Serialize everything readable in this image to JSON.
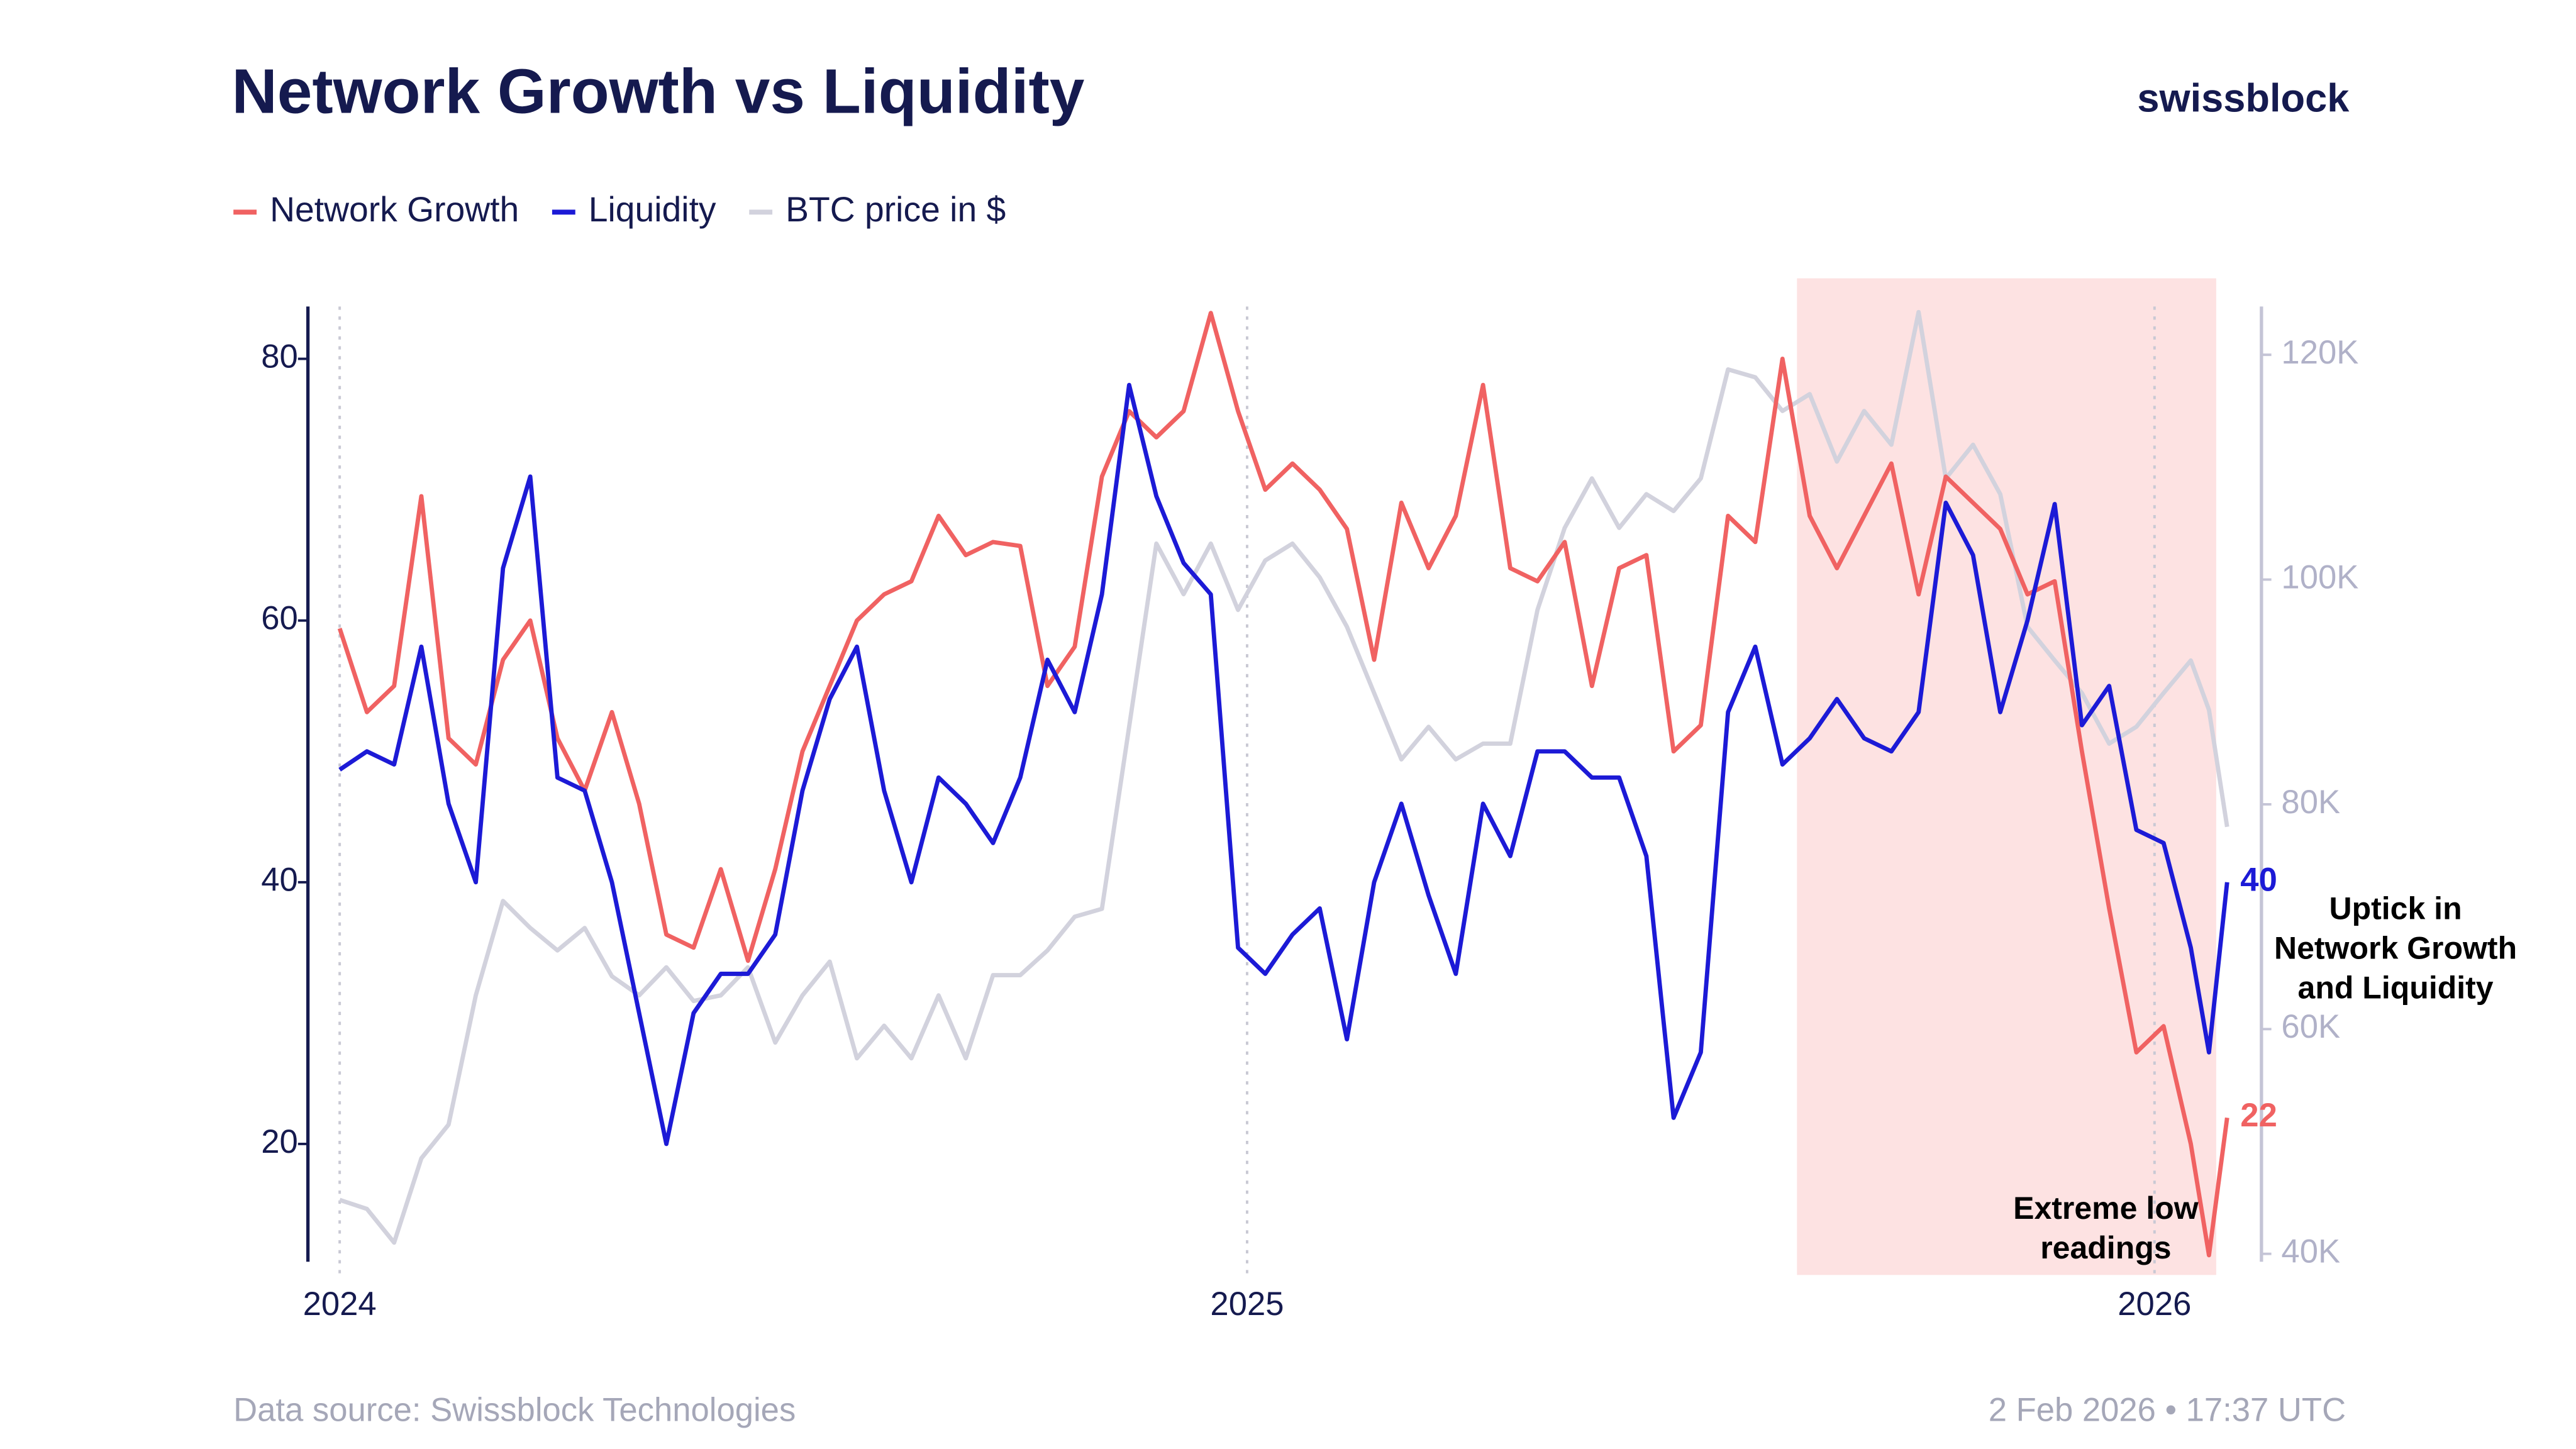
{
  "brand": "swissblock",
  "footer": {
    "source": "Data source: Swissblock Technologies",
    "timestamp": "2 Feb 2026 • 17:37 UTC"
  },
  "chart_data": {
    "type": "line",
    "title": "Network Growth vs Liquidity",
    "x": [
      2024.0,
      2024.03,
      2024.06,
      2024.09,
      2024.12,
      2024.15,
      2024.18,
      2024.21,
      2024.24,
      2024.27,
      2024.3,
      2024.33,
      2024.36,
      2024.39,
      2024.42,
      2024.45,
      2024.48,
      2024.51,
      2024.54,
      2024.57,
      2024.6,
      2024.63,
      2024.66,
      2024.69,
      2024.72,
      2024.75,
      2024.78,
      2024.81,
      2024.84,
      2024.87,
      2024.9,
      2024.93,
      2024.96,
      2024.99,
      2025.02,
      2025.05,
      2025.08,
      2025.11,
      2025.14,
      2025.17,
      2025.2,
      2025.23,
      2025.26,
      2025.29,
      2025.32,
      2025.35,
      2025.38,
      2025.41,
      2025.44,
      2025.47,
      2025.5,
      2025.53,
      2025.56,
      2025.59,
      2025.62,
      2025.65,
      2025.68,
      2025.71,
      2025.74,
      2025.77,
      2025.8,
      2025.83,
      2025.86,
      2025.89,
      2025.92,
      2025.95,
      2025.98,
      2026.01,
      2026.04,
      2026.06,
      2026.08
    ],
    "xlim": [
      2023.965,
      2026.085
    ],
    "xticks": [
      2024,
      2025,
      2026
    ],
    "xgrid": true,
    "ylim": [
      11,
      84
    ],
    "yticks": [
      20,
      40,
      60,
      80
    ],
    "y2lim": [
      39300,
      124300
    ],
    "y2ticks": [
      {
        "value": 40000,
        "label": "40K"
      },
      {
        "value": 60000,
        "label": "60K"
      },
      {
        "value": 80000,
        "label": "80K"
      },
      {
        "value": 100000,
        "label": "100K"
      },
      {
        "value": 120000,
        "label": "120K"
      }
    ],
    "shaded_region": {
      "x": [
        2025.606,
        2026.068
      ],
      "color": "#fde2e2"
    },
    "series": [
      {
        "name": "Network Growth",
        "color": "#f06262",
        "end_label": "22",
        "values": [
          59.4,
          53,
          55,
          69.5,
          51,
          49,
          57,
          60,
          51,
          47,
          53,
          46,
          36,
          35,
          41,
          34,
          41,
          50,
          55,
          60,
          62,
          63,
          68,
          65,
          66,
          65.7,
          55,
          58,
          71,
          76,
          74,
          76,
          83.5,
          76,
          70,
          72,
          70,
          67,
          57,
          69,
          64,
          68,
          78,
          64,
          63,
          66,
          55,
          64,
          65,
          50,
          52,
          68,
          66,
          80,
          68,
          64,
          68,
          72,
          62,
          71,
          69,
          67,
          62,
          63,
          50,
          38,
          27,
          29,
          20,
          11.5,
          22
        ]
      },
      {
        "name": "Liquidity",
        "color": "#1c1ad6",
        "end_label": "40",
        "values": [
          48.6,
          50,
          49,
          58,
          46,
          40,
          64,
          71,
          48,
          47,
          40,
          30,
          20,
          30,
          33,
          33,
          36,
          47,
          54,
          58,
          47,
          40,
          48,
          46,
          43,
          48,
          57,
          53,
          62,
          78,
          69.5,
          64.4,
          62,
          35,
          33,
          36,
          38,
          28,
          40,
          46,
          39,
          33,
          46,
          42,
          50,
          50,
          48,
          48,
          42,
          22,
          27,
          53,
          58,
          49,
          51,
          54,
          51,
          50,
          53,
          69,
          65,
          53,
          60,
          68.9,
          52,
          55,
          44,
          43,
          35,
          27,
          40
        ]
      },
      {
        "name": "BTC price in $",
        "color": "#d2d2dd",
        "axis": "y2",
        "values": [
          44800,
          44000,
          41000,
          48500,
          51500,
          63000,
          71400,
          69000,
          67000,
          69000,
          64700,
          63000,
          65500,
          62500,
          63000,
          65500,
          58800,
          63000,
          66000,
          57400,
          60300,
          57400,
          63000,
          57400,
          64800,
          64800,
          67000,
          70000,
          70700,
          86900,
          103200,
          98700,
          103200,
          97300,
          101700,
          103200,
          100200,
          95800,
          89900,
          84000,
          86900,
          84000,
          85400,
          85400,
          97300,
          104600,
          109000,
          104600,
          107600,
          106100,
          109000,
          118700,
          118000,
          115000,
          116500,
          110500,
          115000,
          112000,
          123800,
          109000,
          112000,
          107600,
          95800,
          92800,
          89900,
          85400,
          86900,
          89900,
          92800,
          88400,
          78000
        ]
      }
    ],
    "annotations": [
      {
        "lines": [
          "Uptick in",
          "Network Growth",
          "and Liquidity"
        ]
      },
      {
        "lines": [
          "Extreme low",
          "readings"
        ]
      }
    ]
  }
}
